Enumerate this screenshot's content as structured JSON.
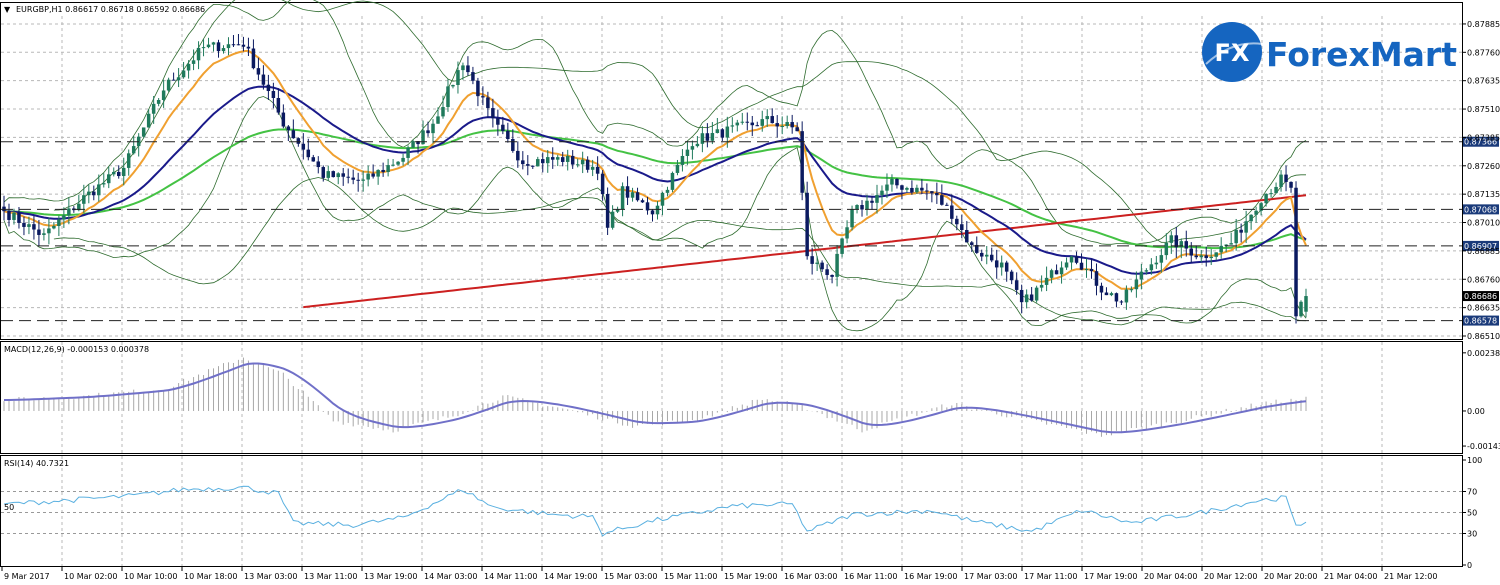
{
  "window": {
    "symbol_header": "EURGBP,H1  0.86617 0.86718 0.86592 0.86686",
    "dropdown_glyph": "▼"
  },
  "logo": {
    "badge_text": "FX",
    "brand_text": "ForexMart",
    "brand_color": "#1565c0"
  },
  "colors": {
    "bull_candle": "#1f7a5c",
    "bear_candle": "#0b1a60",
    "bb_band": "#2e6b2e",
    "ma_fast": "#f0a030",
    "ma_mid": "#1a1a8a",
    "ma_slow_green": "#44c244",
    "ma_200": "#cc2020",
    "macd_line": "#7070c8",
    "rsi_line": "#5ab0e0",
    "grid": "#b8b8b8",
    "highlight_label": "#1a3a7a"
  },
  "main_panel": {
    "price_ticks": [
      "0.87885",
      "0.87760",
      "0.87635",
      "0.87510",
      "0.87385",
      "0.87260",
      "0.87135",
      "0.87010",
      "0.86885",
      "0.86760",
      "0.86635",
      "0.86510"
    ],
    "levels": [
      {
        "value": 0.87366,
        "label": "0.87366",
        "dashed": true,
        "highlight": true
      },
      {
        "value": 0.87068,
        "label": "0.87068",
        "dashed": true,
        "highlight": true
      },
      {
        "value": 0.86907,
        "label": "0.86907",
        "dashed": true,
        "highlight": true
      },
      {
        "value": 0.86578,
        "label": "0.86578",
        "dashed": true,
        "highlight": true
      },
      {
        "value": 0.86686,
        "label": "0.86686",
        "dashed": false,
        "highlight": false
      }
    ]
  },
  "macd_panel": {
    "header": "MACD(12,26,9) -0.000153 0.000378",
    "ticks": [
      "0.002384",
      "0.00",
      "-0.001438"
    ]
  },
  "rsi_panel": {
    "header": "RSI(14) 40.7321",
    "ticks": [
      "100",
      "70",
      "50",
      "30",
      "0"
    ],
    "inner_label": "50"
  },
  "time_labels": [
    "9 Mar 2017",
    "10 Mar 02:00",
    "10 Mar 10:00",
    "10 Mar 18:00",
    "13 Mar 03:00",
    "13 Mar 11:00",
    "13 Mar 19:00",
    "14 Mar 03:00",
    "14 Mar 11:00",
    "14 Mar 19:00",
    "15 Mar 03:00",
    "15 Mar 11:00",
    "15 Mar 19:00",
    "16 Mar 03:00",
    "16 Mar 11:00",
    "16 Mar 19:00",
    "17 Mar 03:00",
    "17 Mar 11:00",
    "17 Mar 19:00",
    "20 Mar 04:00",
    "20 Mar 12:00",
    "20 Mar 20:00",
    "21 Mar 04:00",
    "21 Mar 12:00"
  ],
  "chart_data": {
    "type": "candlestick",
    "symbol": "EURGBP",
    "timeframe": "H1",
    "ylim": [
      0.8651,
      0.8792
    ],
    "close_path": [
      {
        "t": 0,
        "price": 0.8706
      },
      {
        "t": 8,
        "price": 0.8695
      },
      {
        "t": 16,
        "price": 0.8712
      },
      {
        "t": 24,
        "price": 0.8725
      },
      {
        "t": 32,
        "price": 0.876
      },
      {
        "t": 40,
        "price": 0.8778
      },
      {
        "t": 48,
        "price": 0.878
      },
      {
        "t": 56,
        "price": 0.8745
      },
      {
        "t": 64,
        "price": 0.8722
      },
      {
        "t": 72,
        "price": 0.8719
      },
      {
        "t": 80,
        "price": 0.873
      },
      {
        "t": 86,
        "price": 0.8745
      },
      {
        "t": 92,
        "price": 0.8772
      },
      {
        "t": 98,
        "price": 0.8745
      },
      {
        "t": 104,
        "price": 0.8728
      },
      {
        "t": 112,
        "price": 0.8729
      },
      {
        "t": 119,
        "price": 0.8725
      },
      {
        "t": 121,
        "price": 0.8698
      },
      {
        "t": 124,
        "price": 0.8715
      },
      {
        "t": 130,
        "price": 0.8706
      },
      {
        "t": 138,
        "price": 0.8737
      },
      {
        "t": 146,
        "price": 0.8742
      },
      {
        "t": 153,
        "price": 0.8746
      },
      {
        "t": 159,
        "price": 0.8742
      },
      {
        "t": 161,
        "price": 0.8685
      },
      {
        "t": 166,
        "price": 0.8678
      },
      {
        "t": 170,
        "price": 0.8705
      },
      {
        "t": 178,
        "price": 0.8718
      },
      {
        "t": 186,
        "price": 0.8714
      },
      {
        "t": 190,
        "price": 0.8705
      },
      {
        "t": 194,
        "price": 0.869
      },
      {
        "t": 200,
        "price": 0.8682
      },
      {
        "t": 204,
        "price": 0.8665
      },
      {
        "t": 208,
        "price": 0.8673
      },
      {
        "t": 214,
        "price": 0.8688
      },
      {
        "t": 220,
        "price": 0.8672
      },
      {
        "t": 224,
        "price": 0.8666
      },
      {
        "t": 228,
        "price": 0.8678
      },
      {
        "t": 234,
        "price": 0.8693
      },
      {
        "t": 240,
        "price": 0.8686
      },
      {
        "t": 246,
        "price": 0.8692
      },
      {
        "t": 252,
        "price": 0.8712
      },
      {
        "t": 256,
        "price": 0.872
      },
      {
        "t": 258,
        "price": 0.8715
      },
      {
        "t": 259,
        "price": 0.866
      },
      {
        "t": 261,
        "price": 0.86686
      }
    ],
    "macd_path": [
      {
        "t": 0,
        "value": 0.00045
      },
      {
        "t": 16,
        "value": 0.0006
      },
      {
        "t": 32,
        "value": 0.0009
      },
      {
        "t": 48,
        "value": 0.0022
      },
      {
        "t": 56,
        "value": 0.0015
      },
      {
        "t": 66,
        "value": -0.0004
      },
      {
        "t": 78,
        "value": -0.0008
      },
      {
        "t": 90,
        "value": -0.0002
      },
      {
        "t": 100,
        "value": 0.0006
      },
      {
        "t": 112,
        "value": 0.0001
      },
      {
        "t": 126,
        "value": -0.0006
      },
      {
        "t": 138,
        "value": -0.0004
      },
      {
        "t": 152,
        "value": 0.0005
      },
      {
        "t": 160,
        "value": 0.0002
      },
      {
        "t": 172,
        "value": -0.0008
      },
      {
        "t": 190,
        "value": 0.0003
      },
      {
        "t": 206,
        "value": -0.0004
      },
      {
        "t": 220,
        "value": -0.001
      },
      {
        "t": 236,
        "value": -0.0004
      },
      {
        "t": 252,
        "value": 0.0003
      },
      {
        "t": 261,
        "value": 0.0005
      }
    ],
    "rsi_path": [
      {
        "t": 0,
        "value": 58
      },
      {
        "t": 14,
        "value": 62
      },
      {
        "t": 26,
        "value": 66
      },
      {
        "t": 36,
        "value": 72
      },
      {
        "t": 48,
        "value": 74
      },
      {
        "t": 55,
        "value": 68
      },
      {
        "t": 58,
        "value": 40
      },
      {
        "t": 70,
        "value": 38
      },
      {
        "t": 80,
        "value": 45
      },
      {
        "t": 92,
        "value": 72
      },
      {
        "t": 98,
        "value": 55
      },
      {
        "t": 110,
        "value": 48
      },
      {
        "t": 118,
        "value": 46
      },
      {
        "t": 120,
        "value": 30
      },
      {
        "t": 130,
        "value": 42
      },
      {
        "t": 146,
        "value": 56
      },
      {
        "t": 158,
        "value": 58
      },
      {
        "t": 161,
        "value": 32
      },
      {
        "t": 170,
        "value": 48
      },
      {
        "t": 186,
        "value": 52
      },
      {
        "t": 194,
        "value": 42
      },
      {
        "t": 206,
        "value": 32
      },
      {
        "t": 216,
        "value": 52
      },
      {
        "t": 226,
        "value": 40
      },
      {
        "t": 240,
        "value": 50
      },
      {
        "t": 252,
        "value": 62
      },
      {
        "t": 257,
        "value": 64
      },
      {
        "t": 259,
        "value": 36
      },
      {
        "t": 261,
        "value": 40.7321
      }
    ]
  }
}
